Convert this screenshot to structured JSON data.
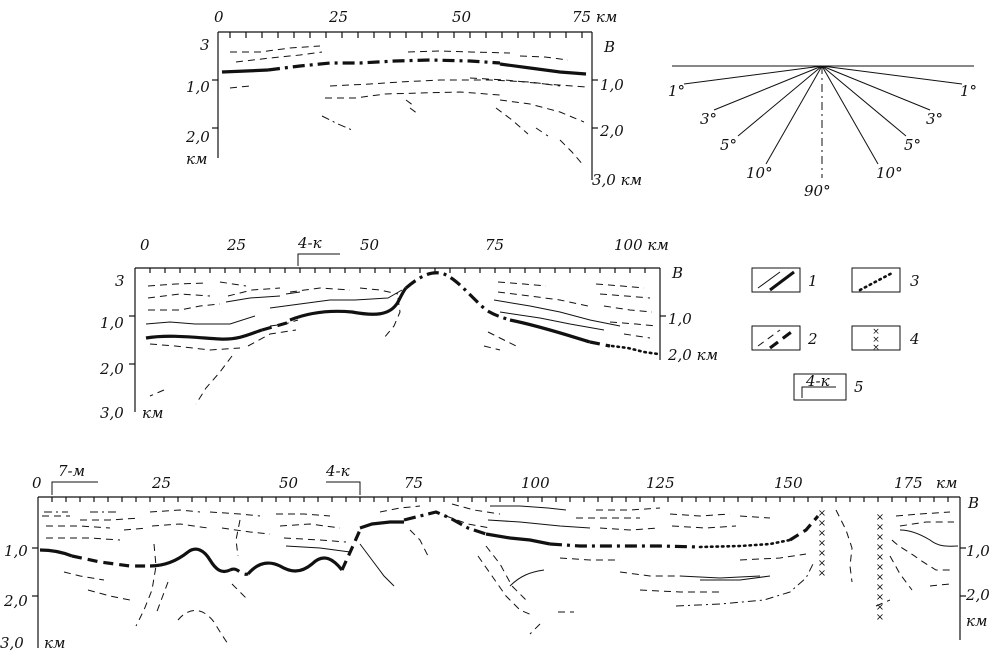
{
  "profile1": {
    "x_ticks": [
      "0",
      "25",
      "50",
      "75 км"
    ],
    "left_depths": [
      "3",
      "1,0",
      "2,0",
      "км"
    ],
    "right_label": "В",
    "right_depths": [
      "1,0",
      "2,0",
      "3,0 км"
    ]
  },
  "fan": {
    "angles": [
      "1°",
      "3°",
      "5°",
      "10°",
      "90°",
      "10°",
      "5°",
      "3°",
      "1°"
    ]
  },
  "profile2": {
    "x_ticks": [
      "0",
      "25",
      "50",
      "75",
      "100 км"
    ],
    "well_label": "4-к",
    "left_depths": [
      "3",
      "1,0",
      "2,0",
      "3,0",
      "км"
    ],
    "right_label": "В",
    "right_depths": [
      "1,0",
      "2,0 км"
    ]
  },
  "legend": {
    "items": [
      {
        "number": "1",
        "symbol": "solid-lines"
      },
      {
        "number": "2",
        "symbol": "dashed-lines"
      },
      {
        "number": "3",
        "symbol": "dotted-line"
      },
      {
        "number": "4",
        "symbol": "crosses"
      },
      {
        "number": "5",
        "symbol": "well-label",
        "text": "4-к"
      }
    ]
  },
  "profile3": {
    "x_ticks": [
      "0",
      "25",
      "50",
      "75",
      "100",
      "125",
      "150",
      "175",
      "км"
    ],
    "well_labels": [
      "7-м",
      "4-к"
    ],
    "left_depths": [
      "1,0",
      "2,0",
      "3,0",
      "км"
    ],
    "right_label": "В",
    "right_depths": [
      "1,0",
      "2,0",
      "км"
    ]
  }
}
